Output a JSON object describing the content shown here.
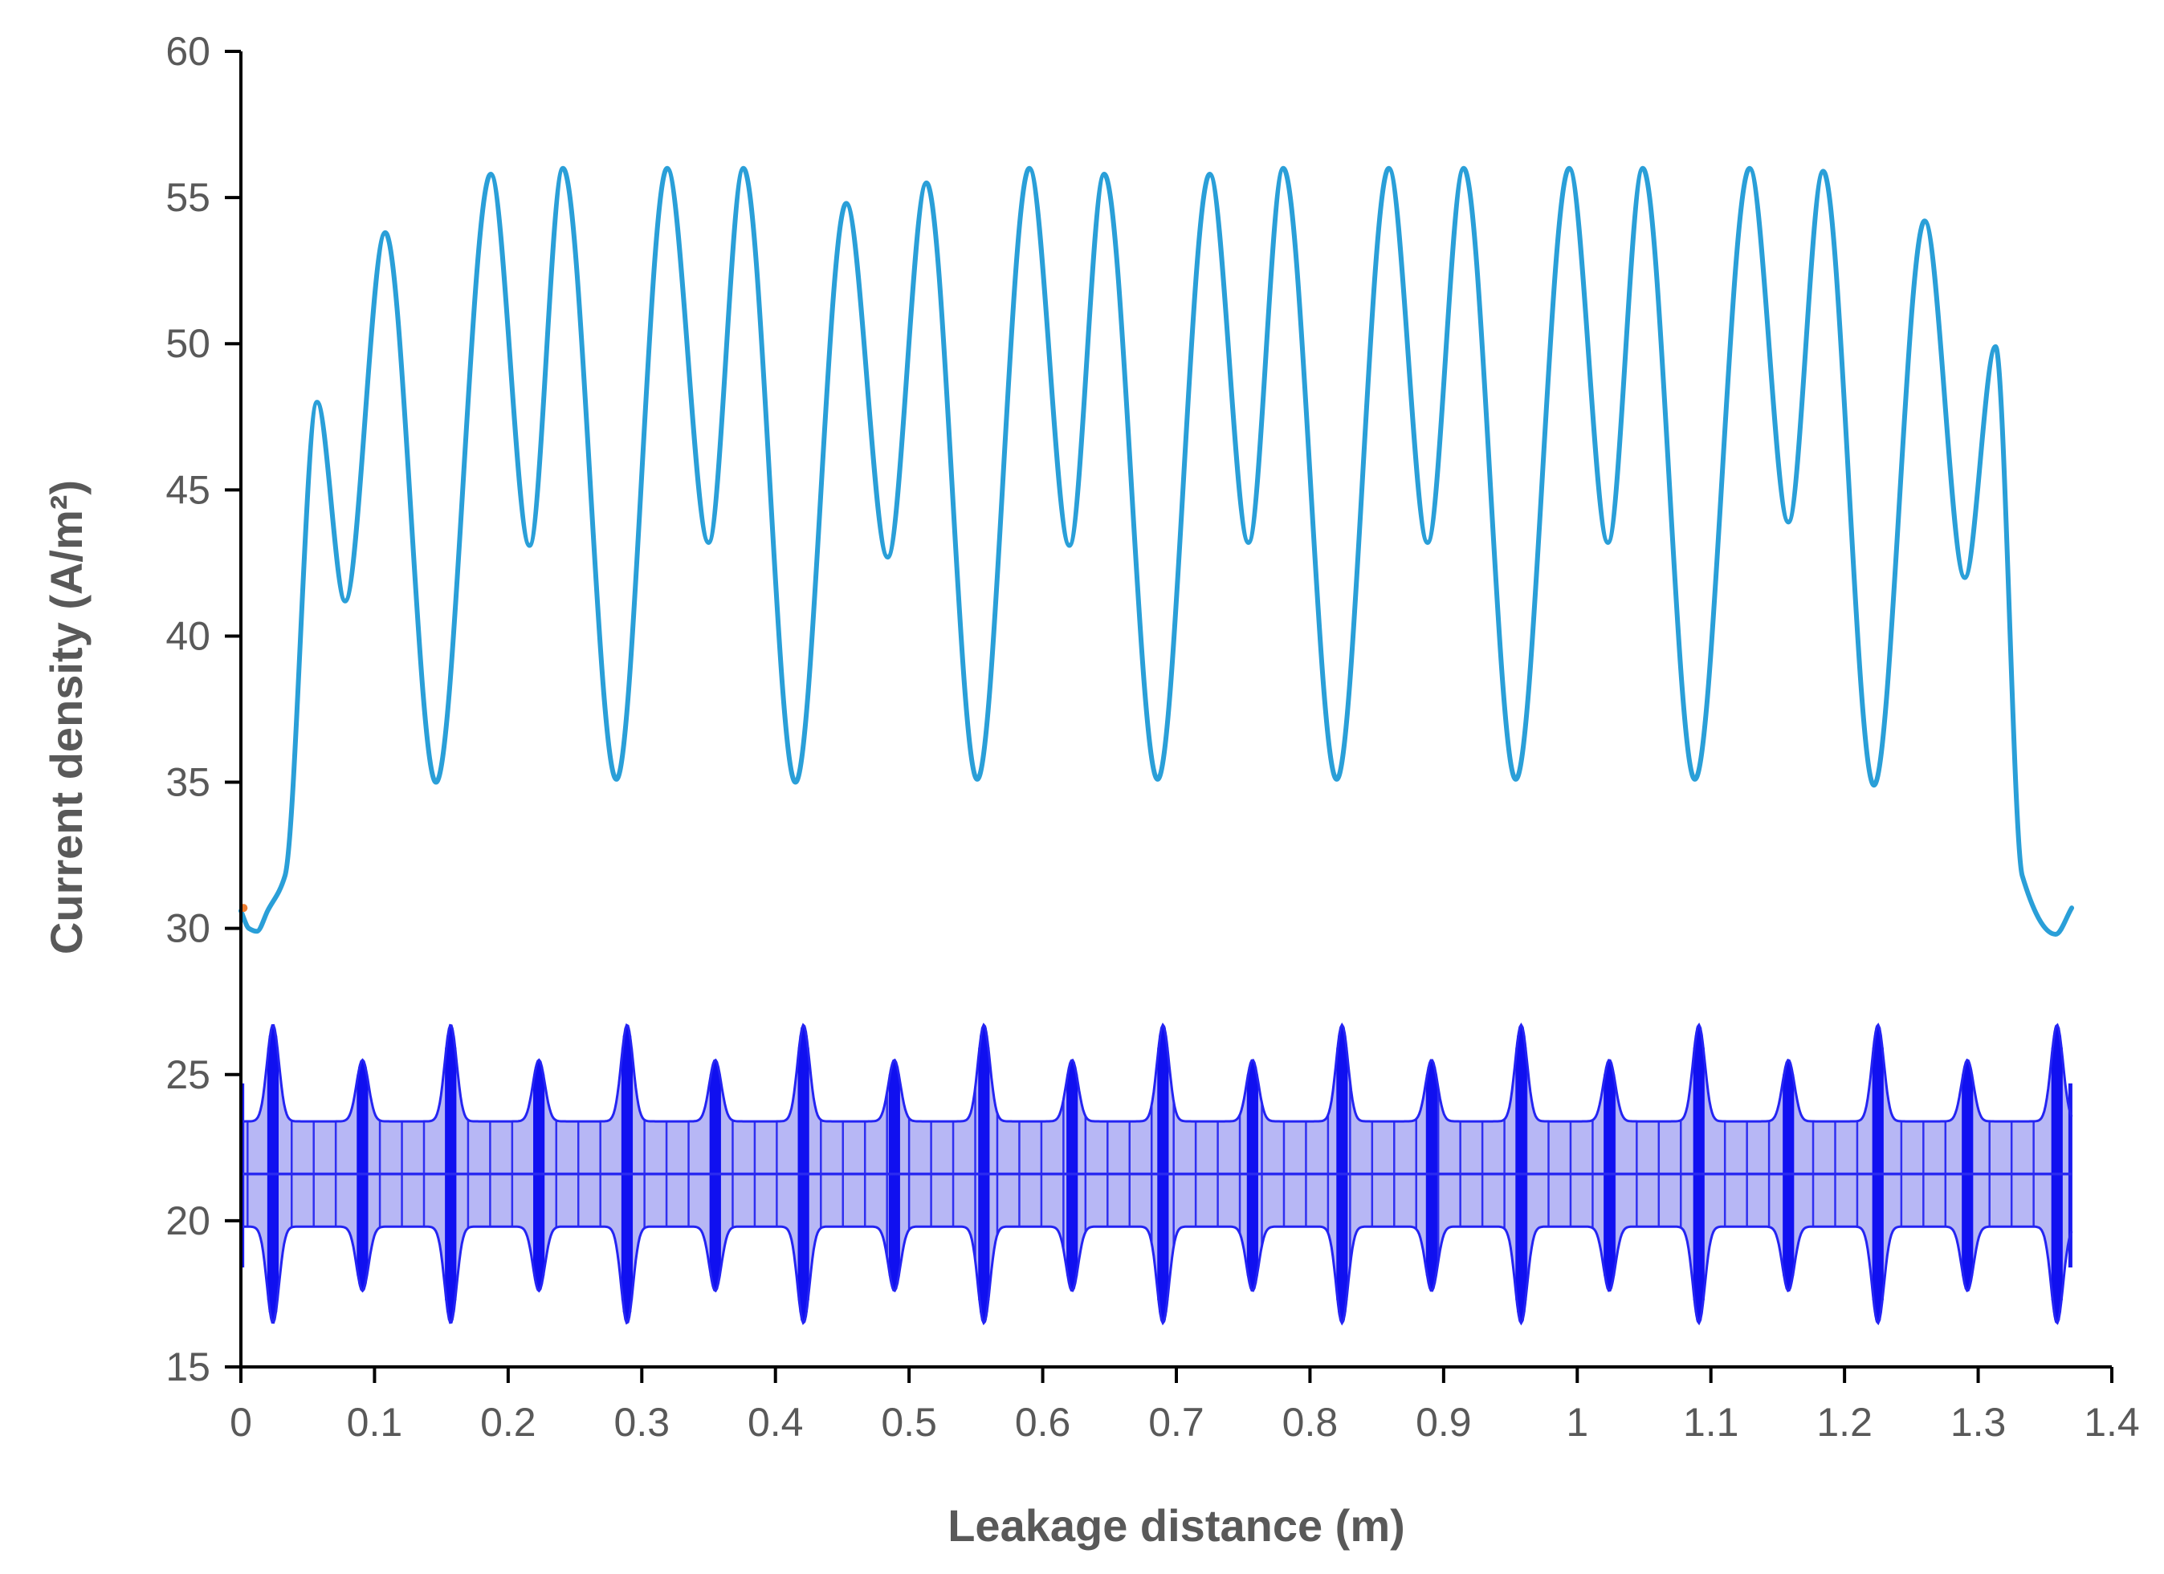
{
  "chart_data": {
    "type": "line",
    "xlabel": "Leakage distance (m)",
    "ylabel": "Current density (A/m²)",
    "xlim": [
      0,
      1.4
    ],
    "ylim": [
      15,
      60
    ],
    "x_ticks": [
      0,
      0.1,
      0.2,
      0.3,
      0.4,
      0.5,
      0.6,
      0.7,
      0.8,
      0.9,
      1,
      1.1,
      1.2,
      1.3,
      1.4
    ],
    "y_ticks": [
      15,
      20,
      25,
      30,
      35,
      40,
      45,
      50,
      55,
      60
    ],
    "grid": false,
    "legend": "none",
    "series": [
      {
        "color": "#2A9FD8",
        "style": "line",
        "points": [
          [
            0.0,
            30.6
          ],
          [
            0.006,
            30.0
          ],
          [
            0.012,
            29.9
          ],
          [
            0.02,
            30.6
          ],
          [
            0.033,
            31.8
          ],
          [
            0.057,
            48.0
          ],
          [
            0.078,
            41.2
          ],
          [
            0.108,
            53.8
          ],
          [
            0.146,
            35.0
          ],
          [
            0.187,
            55.8
          ],
          [
            0.216,
            43.1
          ],
          [
            0.241,
            56.0
          ],
          [
            0.281,
            35.1
          ],
          [
            0.319,
            56.0
          ],
          [
            0.35,
            43.2
          ],
          [
            0.376,
            56.0
          ],
          [
            0.415,
            35.0
          ],
          [
            0.453,
            54.8
          ],
          [
            0.484,
            42.7
          ],
          [
            0.513,
            55.5
          ],
          [
            0.551,
            35.1
          ],
          [
            0.59,
            56.0
          ],
          [
            0.62,
            43.1
          ],
          [
            0.646,
            55.8
          ],
          [
            0.686,
            35.1
          ],
          [
            0.725,
            55.8
          ],
          [
            0.754,
            43.2
          ],
          [
            0.78,
            56.0
          ],
          [
            0.82,
            35.1
          ],
          [
            0.859,
            56.0
          ],
          [
            0.888,
            43.2
          ],
          [
            0.915,
            56.0
          ],
          [
            0.954,
            35.1
          ],
          [
            0.994,
            56.0
          ],
          [
            1.023,
            43.2
          ],
          [
            1.049,
            56.0
          ],
          [
            1.088,
            35.1
          ],
          [
            1.129,
            56.0
          ],
          [
            1.158,
            43.9
          ],
          [
            1.184,
            55.9
          ],
          [
            1.222,
            34.9
          ],
          [
            1.26,
            54.2
          ],
          [
            1.29,
            42.0
          ],
          [
            1.313,
            49.9
          ],
          [
            1.333,
            31.8
          ],
          [
            1.358,
            29.8
          ],
          [
            1.37,
            30.7
          ]
        ]
      },
      {
        "color": "#0000FF",
        "style": "band",
        "x_range": [
          0,
          1.37
        ],
        "center": 21.6,
        "base_upper": 23.4,
        "base_lower": 19.8,
        "major_spikes": {
          "x": [
            0.024,
            0.157,
            0.289,
            0.421,
            0.556,
            0.69,
            0.824,
            0.958,
            1.091,
            1.225,
            1.359
          ],
          "upper": 26.7,
          "lower": 16.5
        },
        "minor_spikes": {
          "x": [
            0.091,
            0.223,
            0.355,
            0.489,
            0.622,
            0.757,
            0.891,
            1.024,
            1.158,
            1.292
          ],
          "upper": 25.5,
          "lower": 17.6
        }
      }
    ]
  }
}
